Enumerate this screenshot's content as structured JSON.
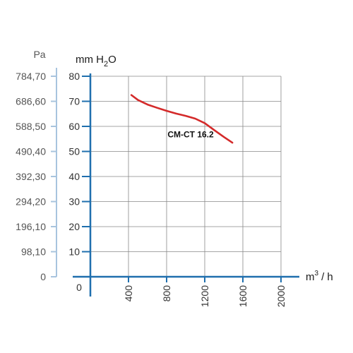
{
  "chart_data": {
    "type": "line",
    "x_unit_base": "m",
    "x_unit_sup": "3",
    "x_unit_tail": "/ h",
    "y_unit_main": "mm H",
    "y_unit_sub": "2",
    "y_unit_tail": "O",
    "pa_unit": "Pa",
    "xlim": [
      0,
      2000
    ],
    "ylim": [
      0,
      80
    ],
    "x_ticks": [
      400,
      800,
      1200,
      1600,
      2000
    ],
    "x_origin_label": "0",
    "y_ticks": [
      10,
      20,
      30,
      40,
      50,
      60,
      70,
      80
    ],
    "pa_ticks": [
      {
        "mm": 0,
        "label": "0"
      },
      {
        "mm": 10,
        "label": "98,10"
      },
      {
        "mm": 20,
        "label": "196,10"
      },
      {
        "mm": 30,
        "label": "294,20"
      },
      {
        "mm": 40,
        "label": "392,30"
      },
      {
        "mm": 50,
        "label": "490,40"
      },
      {
        "mm": 60,
        "label": "588,50"
      },
      {
        "mm": 70,
        "label": "686,60"
      },
      {
        "mm": 80,
        "label": "784,70"
      }
    ],
    "grid": true,
    "series": [
      {
        "name": "CM-CT 16.2",
        "color": "#d42a2a",
        "x": [
          430,
          500,
          600,
          700,
          800,
          900,
          1000,
          1100,
          1200,
          1300,
          1400,
          1490
        ],
        "y": [
          72.5,
          70.5,
          68.7,
          67.4,
          66.2,
          65.1,
          64.2,
          63.1,
          61.3,
          58.5,
          55.8,
          53.5
        ]
      }
    ],
    "colors": {
      "axis": "#1f6fae",
      "pa_axis": "#a8c4de",
      "grid": "#888888"
    }
  }
}
